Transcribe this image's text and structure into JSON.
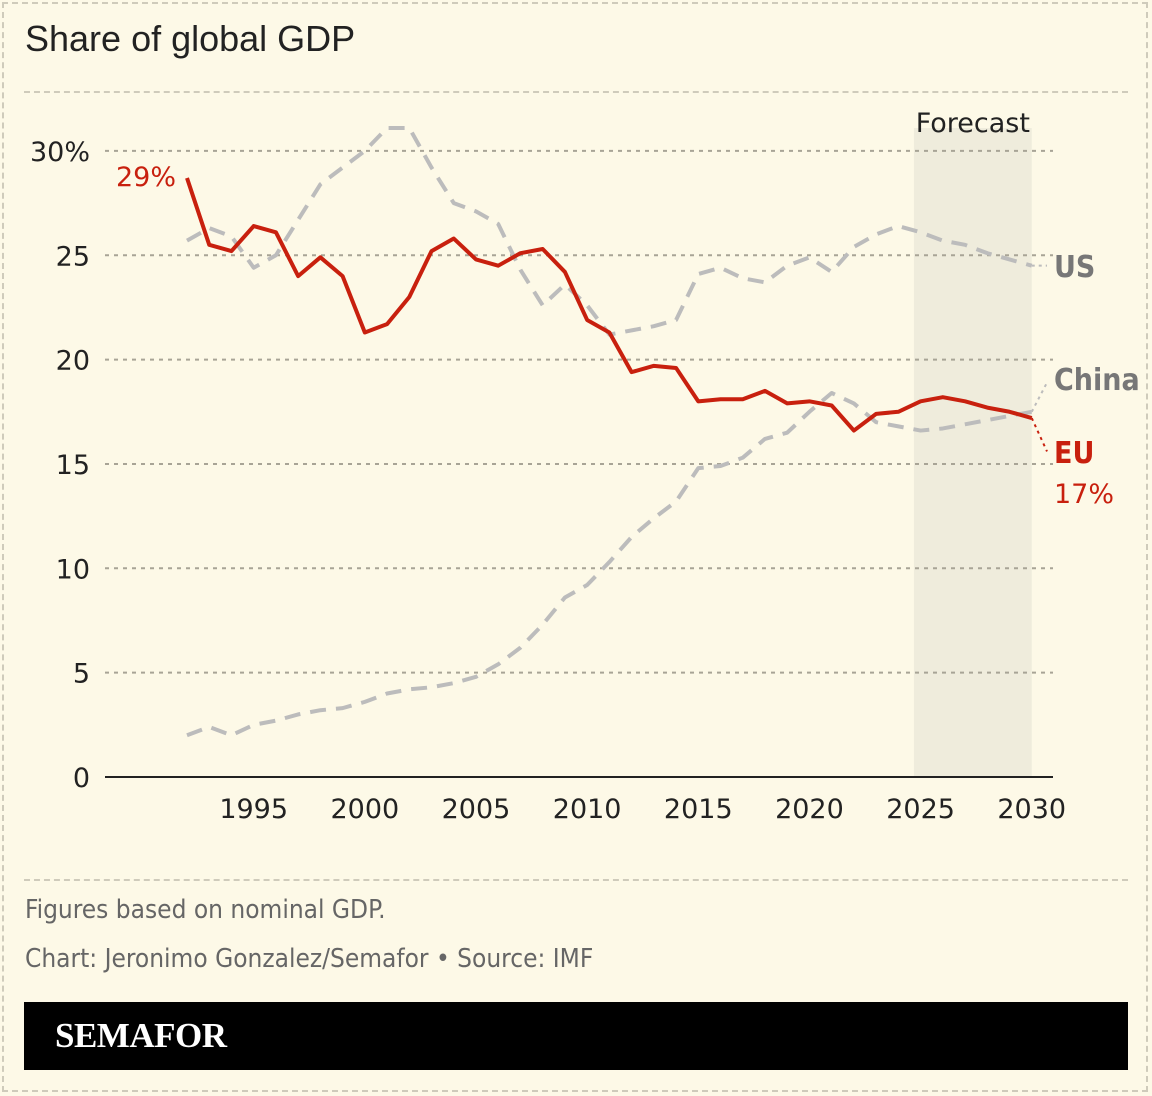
{
  "title": "Share of global GDP",
  "notes": [
    "Figures based on nominal GDP.",
    "Chart: Jeronimo Gonzalez/Semafor • Source: IMF"
  ],
  "brand": "SEMAFOR",
  "chart_data": {
    "type": "line",
    "title": "Share of global GDP",
    "xlim": [
      1992,
      2030
    ],
    "ylim": [
      0,
      30
    ],
    "y_ticks": [
      0,
      5,
      10,
      15,
      20,
      25,
      30
    ],
    "y_tick_labels": [
      "0",
      "5",
      "10",
      "15",
      "20",
      "25",
      "30%"
    ],
    "x_ticks": [
      1995,
      2000,
      2005,
      2010,
      2015,
      2020,
      2025,
      2030
    ],
    "x_tick_labels": [
      "1995",
      "2000",
      "2005",
      "2010",
      "2015",
      "2020",
      "2025",
      "2030"
    ],
    "grid": true,
    "forecast": {
      "label": "Forecast",
      "range": [
        2024.7,
        2030
      ],
      "color": "#efecdc"
    },
    "x": [
      1992,
      1993,
      1994,
      1995,
      1996,
      1997,
      1998,
      1999,
      2000,
      2001,
      2002,
      2003,
      2004,
      2005,
      2006,
      2007,
      2008,
      2009,
      2010,
      2011,
      2012,
      2013,
      2014,
      2015,
      2016,
      2017,
      2018,
      2019,
      2020,
      2021,
      2022,
      2023,
      2024,
      2025,
      2026,
      2027,
      2028,
      2029,
      2030
    ],
    "series": [
      {
        "name": "US",
        "color": "#bcbcbc",
        "label_color": "#777777",
        "style": "dashed",
        "values": [
          25.7,
          26.3,
          25.9,
          24.4,
          25.0,
          26.7,
          28.4,
          29.2,
          30.0,
          31.1,
          31.1,
          29.2,
          27.5,
          27.1,
          26.5,
          24.3,
          22.6,
          23.6,
          22.6,
          21.2,
          21.4,
          21.6,
          21.9,
          24.1,
          24.4,
          23.9,
          23.7,
          24.5,
          24.9,
          24.2,
          25.4,
          26.0,
          26.4,
          26.1,
          25.7,
          25.5,
          25.1,
          24.8,
          24.5
        ]
      },
      {
        "name": "China",
        "color": "#bcbcbc",
        "label_color": "#777777",
        "style": "dashed",
        "values": [
          2.0,
          2.4,
          2.0,
          2.5,
          2.7,
          3.0,
          3.2,
          3.3,
          3.6,
          4.0,
          4.2,
          4.3,
          4.5,
          4.8,
          5.4,
          6.2,
          7.3,
          8.6,
          9.2,
          10.3,
          11.5,
          12.4,
          13.2,
          14.8,
          14.9,
          15.3,
          16.2,
          16.5,
          17.5,
          18.4,
          17.9,
          17.0,
          16.8,
          16.6,
          16.7,
          16.9,
          17.1,
          17.3,
          17.5
        ]
      },
      {
        "name": "EU",
        "color": "#c8200e",
        "label_color": "#c8200e",
        "style": "solid",
        "values": [
          28.7,
          25.5,
          25.2,
          26.4,
          26.1,
          24.0,
          24.9,
          24.0,
          21.3,
          21.7,
          23.0,
          25.2,
          25.8,
          24.8,
          24.5,
          25.1,
          25.3,
          24.2,
          21.9,
          21.3,
          19.4,
          19.7,
          19.6,
          18.0,
          18.1,
          18.1,
          18.5,
          17.9,
          18.0,
          17.8,
          16.6,
          17.4,
          17.5,
          18.0,
          18.2,
          18.0,
          17.7,
          17.5,
          17.2
        ]
      }
    ],
    "annotations": {
      "start": "29%",
      "end": "17%"
    }
  }
}
